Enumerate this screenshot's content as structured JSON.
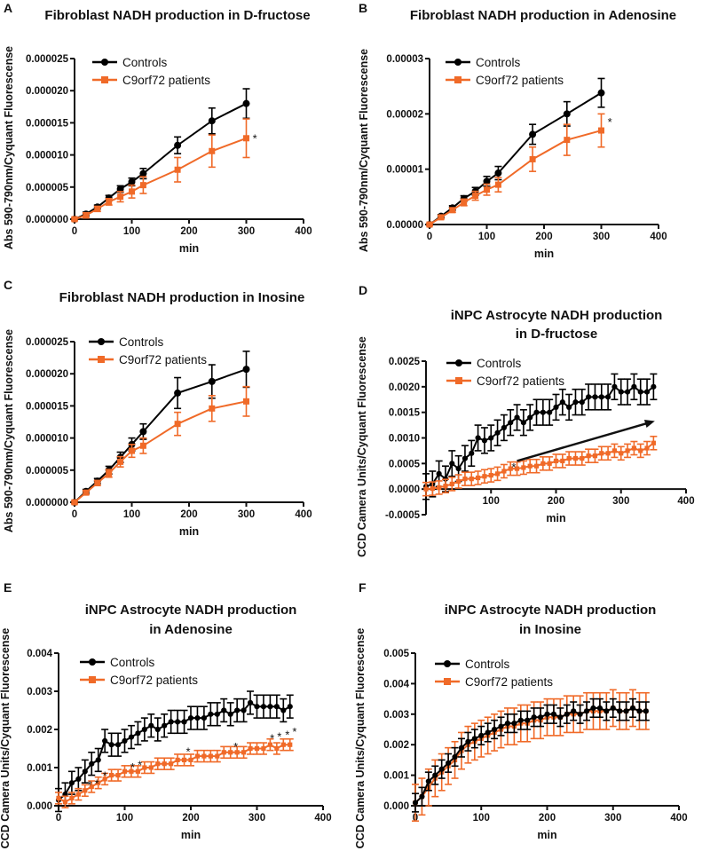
{
  "chart_data": [
    {
      "panel": "A",
      "type": "line",
      "title": [
        "Fibroblast NADH production in D-fructose"
      ],
      "xlabel": "min",
      "ylabel": "Abs 590-790nm/Cyquant Fluorescense",
      "xlim": [
        0,
        400
      ],
      "xticks": [
        0,
        100,
        200,
        300,
        400
      ],
      "xtick_labels": [
        "0",
        "100",
        "200",
        "300",
        "400"
      ],
      "ylim": [
        0,
        2.5e-05
      ],
      "yticks": [
        0,
        5e-06,
        1e-05,
        1.5e-05,
        2e-05,
        2.5e-05
      ],
      "ytick_labels": [
        "0.000000",
        "0.000005",
        "0.000010",
        "0.000015",
        "0.000020",
        "0.000025"
      ],
      "x": [
        0,
        20,
        40,
        60,
        80,
        100,
        120,
        180,
        240,
        300
      ],
      "series": [
        {
          "name": "Controls",
          "color": "#000000",
          "marker": "circle",
          "y": [
            0,
            8e-07,
            1.9e-06,
            3.3e-06,
            4.7e-06,
            5.8e-06,
            7.1e-06,
            1.15e-05,
            1.53e-05,
            1.8e-05
          ],
          "err": [
            2e-07,
            3e-07,
            3e-07,
            4e-07,
            5e-07,
            6e-07,
            8e-07,
            1.3e-06,
            2e-06,
            2.3e-06
          ]
        },
        {
          "name": "C9orf72 patients",
          "color": "#f06a28",
          "marker": "square",
          "y": [
            0,
            6e-07,
            1.6e-06,
            2.7e-06,
            3.5e-06,
            4.3e-06,
            5.3e-06,
            7.7e-06,
            1.06e-05,
            1.26e-05
          ],
          "err": [
            2e-07,
            4e-07,
            4e-07,
            5e-07,
            8e-07,
            1e-06,
            1.3e-06,
            1.9e-06,
            2.5e-06,
            3e-06
          ]
        }
      ],
      "annotations": [
        {
          "text": "*",
          "x": 315,
          "y": 1.28e-05
        }
      ]
    },
    {
      "panel": "B",
      "type": "line",
      "title": [
        "Fibroblast NADH production in Adenosine"
      ],
      "xlabel": "min",
      "ylabel": "Abs 590-790nm/Cyquant Fluorescense",
      "xlim": [
        0,
        400
      ],
      "xticks": [
        0,
        100,
        200,
        300,
        400
      ],
      "xtick_labels": [
        "0",
        "100",
        "200",
        "300",
        "400"
      ],
      "ylim": [
        0,
        3e-05
      ],
      "yticks": [
        0,
        1e-05,
        2e-05,
        3e-05
      ],
      "ytick_labels": [
        "0.00000",
        "0.00001",
        "0.00002",
        "0.00003"
      ],
      "x": [
        0,
        20,
        40,
        60,
        80,
        100,
        120,
        180,
        240,
        300
      ],
      "series": [
        {
          "name": "Controls",
          "color": "#000000",
          "marker": "circle",
          "y": [
            0,
            1.5e-06,
            3e-06,
            4.7e-06,
            6e-06,
            7.8e-06,
            9.3e-06,
            1.63e-05,
            2e-05,
            2.38e-05
          ],
          "err": [
            2e-07,
            3e-07,
            4e-07,
            5e-07,
            7e-07,
            9e-07,
            1.2e-06,
            1.8e-06,
            2.2e-06,
            2.6e-06
          ]
        },
        {
          "name": "C9orf72 patients",
          "color": "#f06a28",
          "marker": "square",
          "y": [
            0,
            1.3e-06,
            2.6e-06,
            4e-06,
            5.2e-06,
            6.3e-06,
            7.2e-06,
            1.18e-05,
            1.53e-05,
            1.7e-05
          ],
          "err": [
            2e-07,
            3e-07,
            4e-07,
            6e-07,
            8e-07,
            1e-06,
            1.3e-06,
            2.2e-06,
            2.8e-06,
            3e-06
          ]
        }
      ],
      "annotations": [
        {
          "text": "*",
          "x": 315,
          "y": 1.88e-05
        }
      ]
    },
    {
      "panel": "C",
      "type": "line",
      "title": [
        "Fibroblast NADH production in Inosine"
      ],
      "xlabel": "min",
      "ylabel": "Abs 590-790nm/Cyquant Fluorescense",
      "xlim": [
        0,
        400
      ],
      "xticks": [
        0,
        100,
        200,
        300,
        400
      ],
      "xtick_labels": [
        "0",
        "100",
        "200",
        "300",
        "400"
      ],
      "ylim": [
        0,
        2.5e-05
      ],
      "yticks": [
        0,
        5e-06,
        1e-05,
        1.5e-05,
        2e-05,
        2.5e-05
      ],
      "ytick_labels": [
        "0.000000",
        "0.000005",
        "0.000010",
        "0.000015",
        "0.000020",
        "0.000025"
      ],
      "x": [
        0,
        20,
        40,
        60,
        80,
        100,
        120,
        180,
        240,
        300
      ],
      "series": [
        {
          "name": "Controls",
          "color": "#000000",
          "marker": "circle",
          "y": [
            0,
            1.7e-06,
            3.3e-06,
            5e-06,
            7e-06,
            9e-06,
            1.1e-05,
            1.7e-05,
            1.88e-05,
            2.07e-05
          ],
          "err": [
            2e-07,
            3e-07,
            4e-07,
            6e-07,
            8e-07,
            1e-06,
            1.2e-06,
            2.4e-06,
            2.6e-06,
            2.8e-06
          ]
        },
        {
          "name": "C9orf72 patients",
          "color": "#f06a28",
          "marker": "square",
          "y": [
            0,
            1.5e-06,
            3e-06,
            4.5e-06,
            6.3e-06,
            8e-06,
            8.8e-06,
            1.22e-05,
            1.46e-05,
            1.57e-05
          ],
          "err": [
            2e-07,
            3e-07,
            4e-07,
            6e-07,
            8e-07,
            1e-06,
            1.2e-06,
            1.8e-06,
            2e-06,
            2.3e-06
          ]
        }
      ],
      "annotations": []
    },
    {
      "panel": "D",
      "type": "line",
      "title": [
        "iNPC Astrocyte NADH production",
        "in D-fructose"
      ],
      "xlabel": "min",
      "ylabel": "CCD  Camera Units/Cyquant Fluorescense",
      "xlim": [
        0,
        400
      ],
      "xticks": [
        100,
        200,
        300,
        400
      ],
      "xtick_labels": [
        "100",
        "200",
        "300",
        "400"
      ],
      "ylim": [
        -0.0005,
        0.0025
      ],
      "yticks": [
        -0.0005,
        0,
        0.0005,
        0.001,
        0.0015,
        0.002,
        0.0025
      ],
      "ytick_labels": [
        "-0.0005",
        "0.0000",
        "0.0005",
        "0.0010",
        "0.0015",
        "0.0020",
        "0.0025"
      ],
      "x": [
        0,
        10,
        20,
        30,
        40,
        50,
        60,
        70,
        80,
        90,
        100,
        110,
        120,
        130,
        140,
        150,
        160,
        170,
        180,
        190,
        200,
        210,
        220,
        230,
        240,
        250,
        260,
        270,
        280,
        290,
        300,
        310,
        320,
        330,
        340,
        350
      ],
      "series": [
        {
          "name": "Controls",
          "color": "#000000",
          "marker": "circle",
          "y": [
            5e-05,
            0.0001,
            0.0003,
            0.0002,
            0.0005,
            0.0004,
            0.0006,
            0.0007,
            0.001,
            0.00095,
            0.001,
            0.0011,
            0.0012,
            0.0013,
            0.0014,
            0.0013,
            0.0014,
            0.0015,
            0.0015,
            0.0015,
            0.0016,
            0.0017,
            0.0016,
            0.0017,
            0.0017,
            0.0018,
            0.0018,
            0.0018,
            0.0018,
            0.002,
            0.0019,
            0.0019,
            0.002,
            0.0019,
            0.0019,
            0.002
          ],
          "err": 0.00025
        },
        {
          "name": "C9orf72 patients",
          "color": "#f06a28",
          "marker": "square",
          "y": [
            0,
            1e-05,
            3e-05,
            6e-05,
            0.0001,
            0.00015,
            0.0002,
            0.0002,
            0.00022,
            0.00025,
            0.00027,
            0.0003,
            0.00035,
            0.0004,
            0.0004,
            0.00042,
            0.00045,
            0.00045,
            0.0005,
            0.0005,
            0.00055,
            0.00055,
            0.0006,
            0.0006,
            0.0006,
            0.00065,
            0.00065,
            0.0007,
            0.0007,
            0.00075,
            0.0007,
            0.00075,
            0.0008,
            0.00075,
            0.0008,
            0.0009
          ],
          "err": 0.00013
        }
      ],
      "annotations": [
        {
          "text": "*",
          "x": 135,
          "y": 0.00045
        }
      ],
      "arrow": {
        "from": [
          140,
          0.00055
        ],
        "to": [
          352,
          0.00133
        ]
      }
    },
    {
      "panel": "E",
      "type": "line",
      "title": [
        "iNPC Astrocyte NADH production",
        "in Adenosine"
      ],
      "xlabel": "min",
      "ylabel": "CCD  Camera Units/Cyquant Fluorescense",
      "xlim": [
        0,
        400
      ],
      "xticks": [
        0,
        100,
        200,
        300,
        400
      ],
      "xtick_labels": [
        "0",
        "100",
        "200",
        "300",
        "400"
      ],
      "ylim": [
        0,
        0.004
      ],
      "yticks": [
        0,
        0.001,
        0.002,
        0.003,
        0.004
      ],
      "ytick_labels": [
        "0.000",
        "0.001",
        "0.002",
        "0.003",
        "0.004"
      ],
      "x": [
        0,
        10,
        20,
        30,
        40,
        50,
        60,
        70,
        80,
        90,
        100,
        110,
        120,
        130,
        140,
        150,
        160,
        170,
        180,
        190,
        200,
        210,
        220,
        230,
        240,
        250,
        260,
        270,
        280,
        290,
        300,
        310,
        320,
        330,
        340,
        350
      ],
      "series": [
        {
          "name": "Controls",
          "color": "#000000",
          "marker": "circle",
          "y": [
            0.00015,
            0.0003,
            0.0006,
            0.0007,
            0.0009,
            0.0011,
            0.0012,
            0.0017,
            0.0016,
            0.0016,
            0.0017,
            0.0018,
            0.0019,
            0.002,
            0.0021,
            0.002,
            0.0021,
            0.0022,
            0.0022,
            0.0022,
            0.0023,
            0.0023,
            0.0023,
            0.0024,
            0.0024,
            0.0025,
            0.0024,
            0.0025,
            0.0025,
            0.0027,
            0.0026,
            0.0026,
            0.0026,
            0.0026,
            0.0025,
            0.0026
          ],
          "err": 0.0003
        },
        {
          "name": "C9orf72 patients",
          "color": "#f06a28",
          "marker": "square",
          "y": [
            0.0002,
            0.0001,
            0.0002,
            0.0003,
            0.0004,
            0.0005,
            0.0006,
            0.0007,
            0.0008,
            0.0008,
            0.0009,
            0.0009,
            0.0009,
            0.001,
            0.001,
            0.0011,
            0.0011,
            0.0011,
            0.0012,
            0.0012,
            0.0012,
            0.0013,
            0.0013,
            0.0013,
            0.0013,
            0.0014,
            0.0014,
            0.0014,
            0.0014,
            0.0015,
            0.0015,
            0.0015,
            0.0016,
            0.0015,
            0.0016,
            0.0016
          ],
          "err": 0.00015
        }
      ],
      "annotations": [
        {
          "text": "*",
          "x": 47,
          "y": 0.00058
        },
        {
          "text": "*",
          "x": 58,
          "y": 0.00062
        },
        {
          "text": "*",
          "x": 70,
          "y": 0.00082
        },
        {
          "text": "*",
          "x": 112,
          "y": 0.00105
        },
        {
          "text": "*",
          "x": 123,
          "y": 0.0011
        },
        {
          "text": "*",
          "x": 196,
          "y": 0.00145
        },
        {
          "text": "*",
          "x": 268,
          "y": 0.00158
        },
        {
          "text": "*",
          "x": 323,
          "y": 0.0018
        },
        {
          "text": "*",
          "x": 334,
          "y": 0.00185
        },
        {
          "text": "*",
          "x": 346,
          "y": 0.0019
        },
        {
          "text": "*",
          "x": 357,
          "y": 0.00198
        }
      ]
    },
    {
      "panel": "F",
      "type": "line",
      "title": [
        "iNPC Astrocyte NADH production",
        "in Inosine"
      ],
      "xlabel": "min",
      "ylabel": "CCD  Camera Units/Cyquant Fluorescense",
      "xlim": [
        0,
        400
      ],
      "xticks": [
        0,
        100,
        200,
        300,
        400
      ],
      "xtick_labels": [
        "0",
        "100",
        "200",
        "300",
        "400"
      ],
      "ylim": [
        0,
        0.005
      ],
      "yticks": [
        0,
        0.001,
        0.002,
        0.003,
        0.004,
        0.005
      ],
      "ytick_labels": [
        "0.000",
        "0.001",
        "0.002",
        "0.003",
        "0.004",
        "0.005"
      ],
      "x": [
        0,
        10,
        20,
        30,
        40,
        50,
        60,
        70,
        80,
        90,
        100,
        110,
        120,
        130,
        140,
        150,
        160,
        170,
        180,
        190,
        200,
        210,
        220,
        230,
        240,
        250,
        260,
        270,
        280,
        290,
        300,
        310,
        320,
        330,
        340,
        350
      ],
      "series": [
        {
          "name": "C9orf72 patients",
          "color": "#f06a28",
          "marker": "square",
          "y": [
            0.0001,
            0.0003,
            0.0006,
            0.0009,
            0.0011,
            0.0013,
            0.0015,
            0.0018,
            0.002,
            0.0021,
            0.0022,
            0.0023,
            0.0024,
            0.0025,
            0.0026,
            0.0026,
            0.0027,
            0.0027,
            0.0028,
            0.0028,
            0.0029,
            0.0029,
            0.0029,
            0.003,
            0.003,
            0.003,
            0.0031,
            0.0031,
            0.0031,
            0.0031,
            0.0032,
            0.0031,
            0.0031,
            0.0032,
            0.0031,
            0.0031
          ],
          "err": 0.0006
        },
        {
          "name": "Controls",
          "color": "#000000",
          "marker": "circle",
          "y": [
            0.0001,
            0.0003,
            0.0008,
            0.001,
            0.0012,
            0.0014,
            0.0016,
            0.0019,
            0.0021,
            0.0022,
            0.0023,
            0.0024,
            0.0025,
            0.0026,
            0.0027,
            0.0027,
            0.0028,
            0.0028,
            0.0029,
            0.0029,
            0.003,
            0.003,
            0.0029,
            0.003,
            0.0031,
            0.003,
            0.0031,
            0.0032,
            0.0032,
            0.0031,
            0.0032,
            0.0031,
            0.0031,
            0.0032,
            0.0031,
            0.0031
          ],
          "err": 0.0003
        }
      ],
      "legend_order": [
        "Controls",
        "C9orf72 patients"
      ],
      "annotations": []
    }
  ]
}
